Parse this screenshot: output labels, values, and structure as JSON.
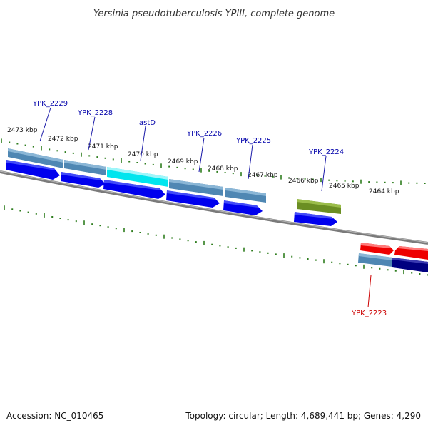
{
  "title": "Yersinia pseudotuberculosis YPIII, complete genome",
  "colors": {
    "tick": "#2e7d1e",
    "backbone": "#808080",
    "cds": "#0000ee",
    "gene": "#4f87b3",
    "gene_selected": "#00e5ee",
    "olive": "#6b8e23",
    "red": "#ee0000",
    "navy": "#000080",
    "label_default": "#0000aa",
    "label_red": "#cc0000"
  },
  "ticks": [
    {
      "label": "2473 kbp"
    },
    {
      "label": "2472 kbp"
    },
    {
      "label": "2471 kbp"
    },
    {
      "label": "2470 kbp"
    },
    {
      "label": "2469 kbp"
    },
    {
      "label": "2468 kbp"
    },
    {
      "label": "2467 kbp"
    },
    {
      "label": "2466 kbp"
    },
    {
      "label": "2465 kbp"
    },
    {
      "label": "2464 kbp"
    }
  ],
  "gene_labels": [
    {
      "name": "YPK_2229"
    },
    {
      "name": "YPK_2228"
    },
    {
      "name": "astD"
    },
    {
      "name": "YPK_2226"
    },
    {
      "name": "YPK_2225"
    },
    {
      "name": "YPK_2224"
    },
    {
      "name": "YPK_2223"
    }
  ],
  "footer": {
    "accession": "Accession: NC_010465",
    "topology": "Topology: circular; Length: 4,689,441 bp; Genes: 4,290"
  }
}
